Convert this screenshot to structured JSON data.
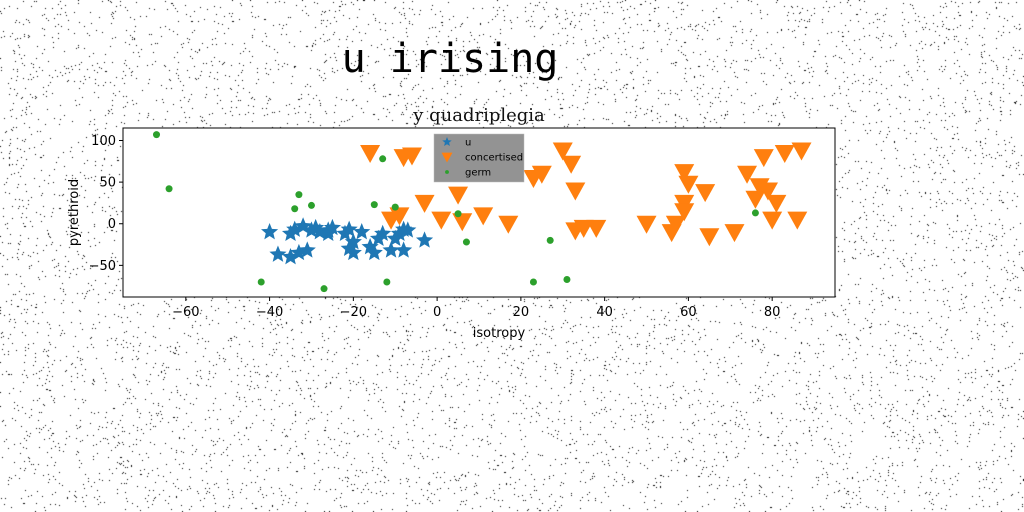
{
  "suptitle": "u irising",
  "chart_data": {
    "type": "scatter",
    "title": "y quadriplegia",
    "xlabel": "isotropy",
    "ylabel": "pyrethroid",
    "xlim": [
      -75,
      95
    ],
    "ylim": [
      -88,
      115
    ],
    "xticks": [
      -60,
      -40,
      -20,
      0,
      20,
      40,
      60,
      80
    ],
    "yticks": [
      -50,
      0,
      50,
      100
    ],
    "grid": false,
    "legend_position": "top-center",
    "series": [
      {
        "name": "u",
        "marker": "star",
        "color": "#1f77b4",
        "points": [
          [
            -40,
            -10
          ],
          [
            -38,
            -37
          ],
          [
            -35,
            -40
          ],
          [
            -35,
            -12
          ],
          [
            -34,
            -7
          ],
          [
            -33,
            -35
          ],
          [
            -32,
            -3
          ],
          [
            -31,
            -32
          ],
          [
            -30,
            -8
          ],
          [
            -29,
            -5
          ],
          [
            -28,
            -10
          ],
          [
            -26,
            -12
          ],
          [
            -26,
            -8
          ],
          [
            -25,
            -5
          ],
          [
            -22,
            -12
          ],
          [
            -21,
            -7
          ],
          [
            -21,
            -30
          ],
          [
            -20,
            -22
          ],
          [
            -20,
            -35
          ],
          [
            -18,
            -10
          ],
          [
            -16,
            -28
          ],
          [
            -15,
            -35
          ],
          [
            -14,
            -18
          ],
          [
            -13,
            -12
          ],
          [
            -11,
            -32
          ],
          [
            -10,
            -18
          ],
          [
            -9,
            -12
          ],
          [
            -8,
            -7
          ],
          [
            -8,
            -32
          ],
          [
            -7,
            -8
          ],
          [
            -3,
            -20
          ]
        ]
      },
      {
        "name": "concertised",
        "marker": "triangle-down",
        "color": "#ff7f0e",
        "points": [
          [
            -16,
            85
          ],
          [
            -11,
            5
          ],
          [
            -9,
            10
          ],
          [
            -8,
            80
          ],
          [
            -6,
            82
          ],
          [
            -3,
            25
          ],
          [
            1,
            5
          ],
          [
            5,
            35
          ],
          [
            6,
            3
          ],
          [
            11,
            10
          ],
          [
            17,
            0
          ],
          [
            23,
            55
          ],
          [
            25,
            60
          ],
          [
            30,
            88
          ],
          [
            32,
            72
          ],
          [
            33,
            40
          ],
          [
            33,
            -8
          ],
          [
            35,
            -5
          ],
          [
            38,
            -5
          ],
          [
            50,
            0
          ],
          [
            56,
            -10
          ],
          [
            57,
            0
          ],
          [
            59,
            62
          ],
          [
            59,
            25
          ],
          [
            59,
            15
          ],
          [
            60,
            48
          ],
          [
            64,
            38
          ],
          [
            65,
            -15
          ],
          [
            71,
            -10
          ],
          [
            74,
            60
          ],
          [
            76,
            30
          ],
          [
            77,
            45
          ],
          [
            78,
            80
          ],
          [
            79,
            40
          ],
          [
            80,
            5
          ],
          [
            81,
            25
          ],
          [
            83,
            85
          ],
          [
            86,
            5
          ],
          [
            87,
            88
          ]
        ]
      },
      {
        "name": "germ",
        "marker": "circle",
        "color": "#2ca02c",
        "points": [
          [
            -67,
            107
          ],
          [
            -64,
            42
          ],
          [
            -42,
            -70
          ],
          [
            -34,
            18
          ],
          [
            -33,
            35
          ],
          [
            -30,
            22
          ],
          [
            -27,
            -78
          ],
          [
            -15,
            23
          ],
          [
            -13,
            78
          ],
          [
            -12,
            -70
          ],
          [
            -10,
            20
          ],
          [
            5,
            12
          ],
          [
            7,
            -22
          ],
          [
            23,
            -70
          ],
          [
            27,
            -20
          ],
          [
            31,
            -67
          ],
          [
            76,
            13
          ]
        ]
      }
    ]
  }
}
